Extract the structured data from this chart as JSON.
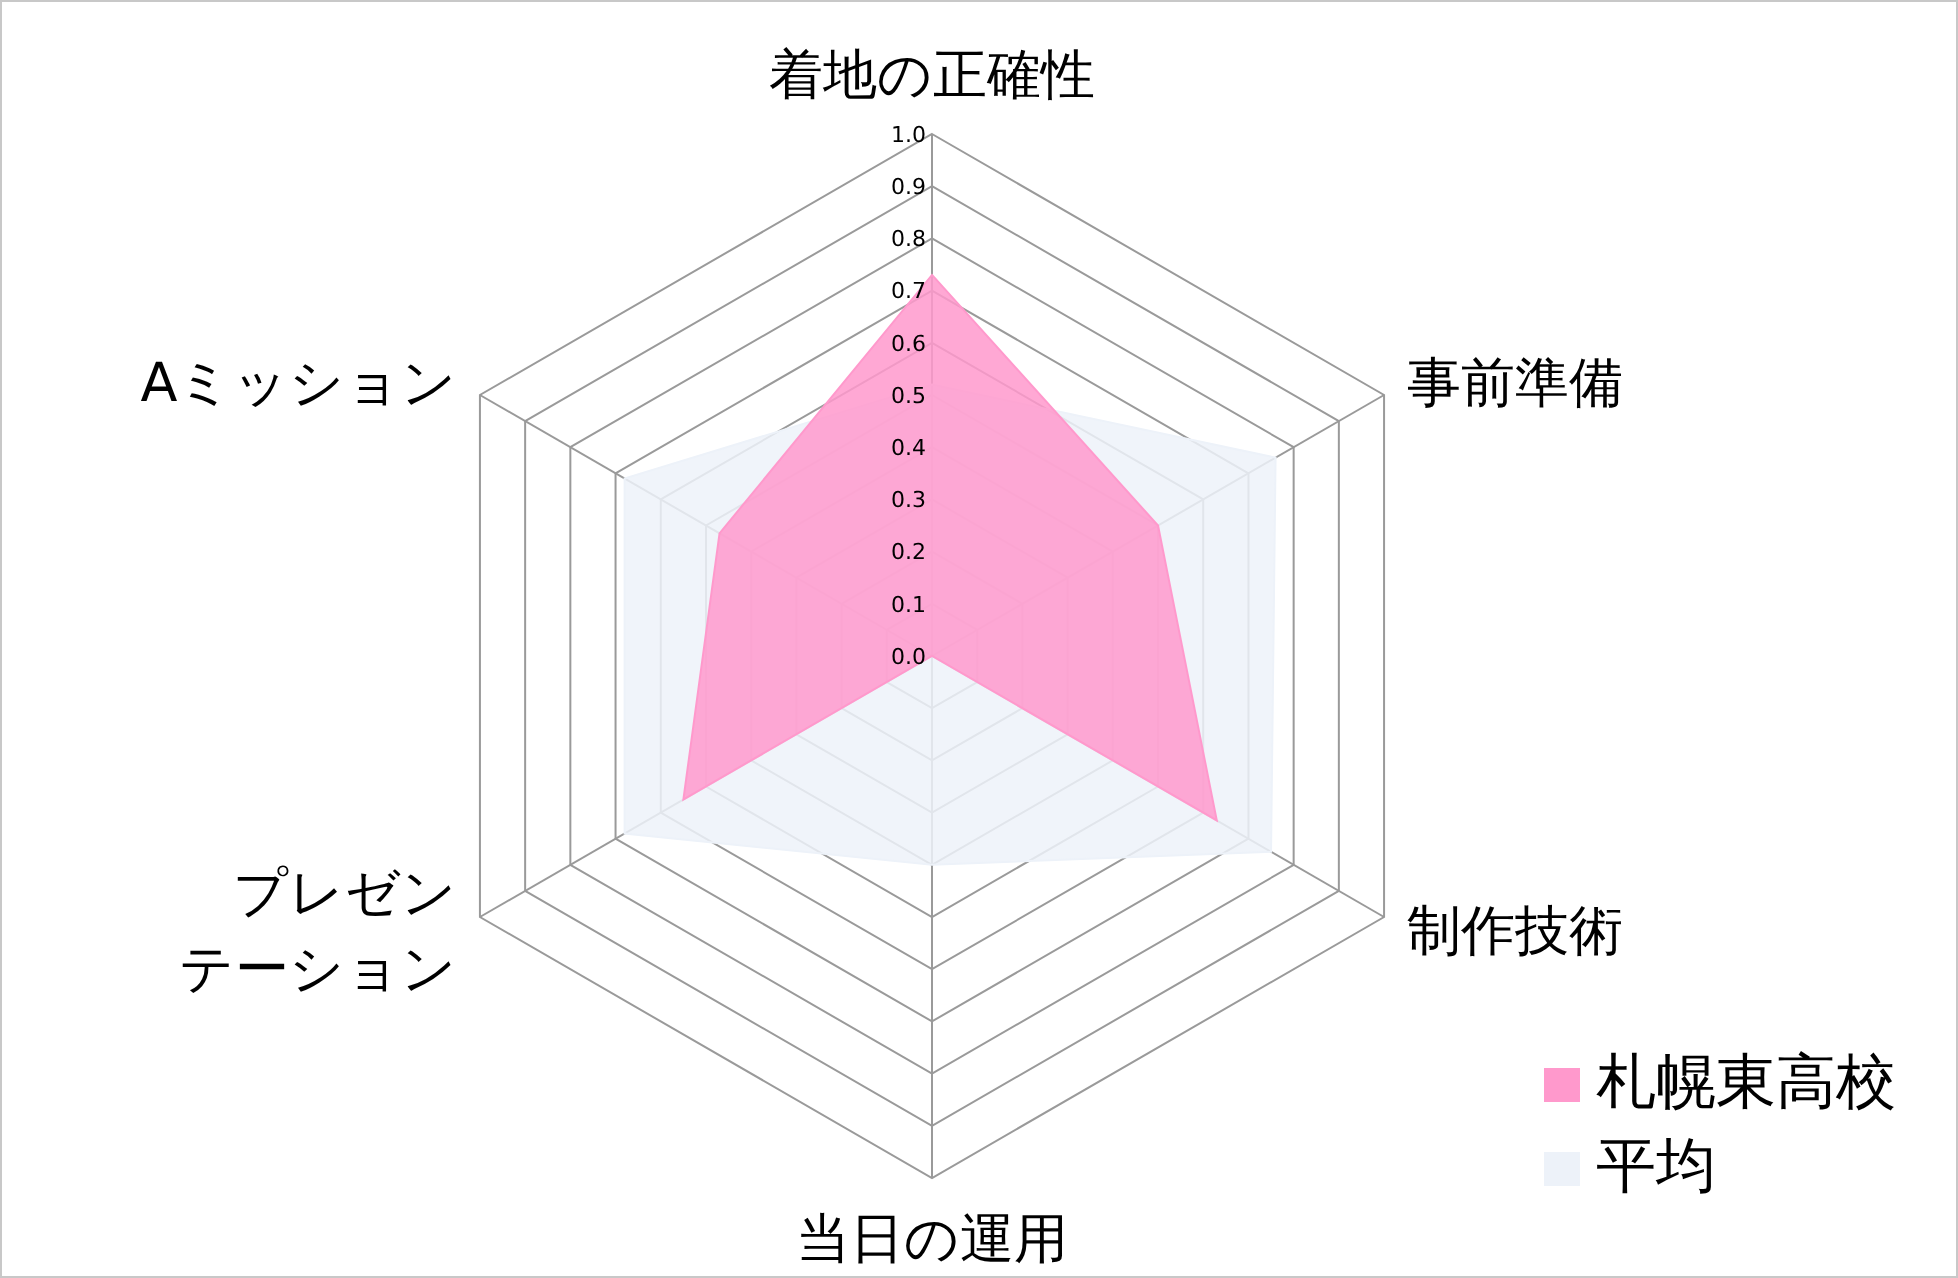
{
  "chart_data": {
    "type": "radar",
    "categories": [
      "着地の正確性",
      "事前準備",
      "制作技術",
      "当日の運用",
      "プレゼンテーション",
      "Aミッション"
    ],
    "series": [
      {
        "name": "札幌東高校",
        "color": "#ff99cc",
        "values": [
          0.73,
          0.5,
          0.63,
          0,
          0.55,
          0.47
        ]
      },
      {
        "name": "平均",
        "color": "#edf2f9",
        "values": [
          0.52,
          0.76,
          0.75,
          0.4,
          0.68,
          0.68
        ]
      }
    ],
    "ylim": [
      0,
      1
    ],
    "yticks": [
      {
        "value": 0,
        "label": "0.0"
      },
      0.1,
      0.2,
      0.3,
      0.4,
      0.5,
      0.6,
      0.7,
      0.8,
      0.9,
      {
        "value": 1,
        "label": "1.0"
      }
    ],
    "grid": true,
    "legend": "bottom right"
  }
}
